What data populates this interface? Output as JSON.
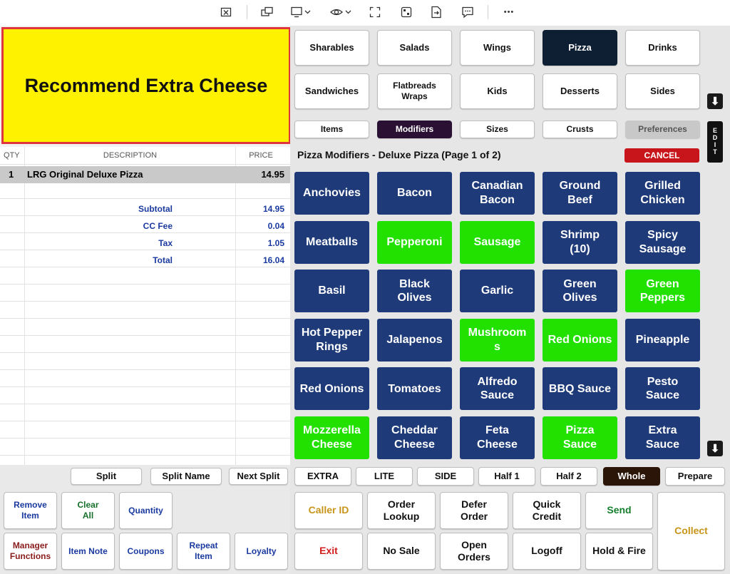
{
  "toolbar": {
    "icons": [
      "close-window-icon",
      "switch-screen-icon",
      "monitor-dropdown-icon",
      "view-dropdown-icon",
      "fullscreen-icon",
      "remote-control-icon",
      "transfer-file-icon",
      "chat-icon",
      "more-icon"
    ],
    "more_glyph": "•••"
  },
  "message": "Recommend Extra Cheese",
  "receipt": {
    "headers": {
      "qty": "QTY",
      "description": "DESCRIPTION",
      "price": "PRICE"
    },
    "items": [
      {
        "qty": "1",
        "description": "LRG Original Deluxe Pizza",
        "price": "14.95"
      }
    ],
    "totals": [
      {
        "label": "Subtotal",
        "value": "14.95"
      },
      {
        "label": "CC Fee",
        "value": "0.04"
      },
      {
        "label": "Tax",
        "value": "1.05"
      },
      {
        "label": "Total",
        "value": "16.04"
      }
    ]
  },
  "split_bar": {
    "split": "Split",
    "split_name": "Split Name",
    "next_split": "Next Split"
  },
  "left_actions": {
    "remove_item": "Remove\nItem",
    "clear_all": "Clear\nAll",
    "quantity": "Quantity",
    "manager_functions": "Manager\nFunctions",
    "item_note": "Item Note",
    "coupons": "Coupons",
    "repeat_item": "Repeat\nItem",
    "loyalty": "Loyalty"
  },
  "categories": [
    {
      "label": "Sharables",
      "selected": false
    },
    {
      "label": "Salads",
      "selected": false
    },
    {
      "label": "Wings",
      "selected": false
    },
    {
      "label": "Pizza",
      "selected": true
    },
    {
      "label": "Drinks",
      "selected": false
    },
    {
      "label": "Sandwiches",
      "selected": false
    },
    {
      "label": "Flatbreads\nWraps",
      "selected": false
    },
    {
      "label": "Kids",
      "selected": false
    },
    {
      "label": "Desserts",
      "selected": false
    },
    {
      "label": "Sides",
      "selected": false
    }
  ],
  "subtabs": [
    {
      "label": "Items",
      "state": "normal"
    },
    {
      "label": "Modifiers",
      "state": "selected"
    },
    {
      "label": "Sizes",
      "state": "normal"
    },
    {
      "label": "Crusts",
      "state": "normal"
    },
    {
      "label": "Preferences",
      "state": "disabled"
    }
  ],
  "edit_label": "E\nD\nI\nT",
  "modifiers_title": "Pizza Modifiers - Deluxe Pizza (Page 1 of 2)",
  "cancel_label": "CANCEL",
  "modifiers": [
    {
      "label": "Anchovies",
      "active": false
    },
    {
      "label": "Bacon",
      "active": false
    },
    {
      "label": "Canadian\nBacon",
      "active": false
    },
    {
      "label": "Ground\nBeef",
      "active": false
    },
    {
      "label": "Grilled\nChicken",
      "active": false
    },
    {
      "label": "Meatballs",
      "active": false
    },
    {
      "label": "Pepperoni",
      "active": true
    },
    {
      "label": "Sausage",
      "active": true
    },
    {
      "label": "Shrimp\n(10)",
      "active": false
    },
    {
      "label": "Spicy\nSausage",
      "active": false
    },
    {
      "label": "Basil",
      "active": false
    },
    {
      "label": "Black\nOlives",
      "active": false
    },
    {
      "label": "Garlic",
      "active": false
    },
    {
      "label": "Green\nOlives",
      "active": false
    },
    {
      "label": "Green\nPeppers",
      "active": true
    },
    {
      "label": "Hot Pepper\nRings",
      "active": false
    },
    {
      "label": "Jalapenos",
      "active": false
    },
    {
      "label": "Mushroom\ns",
      "active": true
    },
    {
      "label": "Red Onions",
      "active": true
    },
    {
      "label": "Pineapple",
      "active": false
    },
    {
      "label": "Red Onions",
      "active": false
    },
    {
      "label": "Tomatoes",
      "active": false
    },
    {
      "label": "Alfredo\nSauce",
      "active": false
    },
    {
      "label": "BBQ Sauce",
      "active": false
    },
    {
      "label": "Pesto\nSauce",
      "active": false
    },
    {
      "label": "Mozzerella\nCheese",
      "active": true
    },
    {
      "label": "Cheddar\nCheese",
      "active": false
    },
    {
      "label": "Feta\nCheese",
      "active": false
    },
    {
      "label": "Pizza\nSauce",
      "active": true
    },
    {
      "label": "Extra\nSauce",
      "active": false
    }
  ],
  "options": [
    {
      "label": "EXTRA",
      "selected": false
    },
    {
      "label": "LITE",
      "selected": false
    },
    {
      "label": "SIDE",
      "selected": false
    },
    {
      "label": "Half 1",
      "selected": false
    },
    {
      "label": "Half 2",
      "selected": false
    },
    {
      "label": "Whole",
      "selected": true
    },
    {
      "label": "Prepare",
      "selected": false
    }
  ],
  "right_actions": {
    "caller_id": "Caller ID",
    "order_lookup": "Order\nLookup",
    "defer_order": "Defer\nOrder",
    "quick_credit": "Quick\nCredit",
    "send": "Send",
    "collect": "Collect",
    "exit": "Exit",
    "no_sale": "No Sale",
    "open_orders": "Open\nOrders",
    "logoff": "Logoff",
    "hold_fire": "Hold & Fire"
  },
  "colors": {
    "message_bg": "#fff200",
    "message_border": "#e0353c",
    "modifier_blue": "#1e3a78",
    "modifier_green": "#22e000",
    "selected_category": "#0e1f33",
    "selected_subtab": "#2a1134",
    "cancel_red": "#c8151b",
    "totals_blue": "#1a3aa0"
  }
}
